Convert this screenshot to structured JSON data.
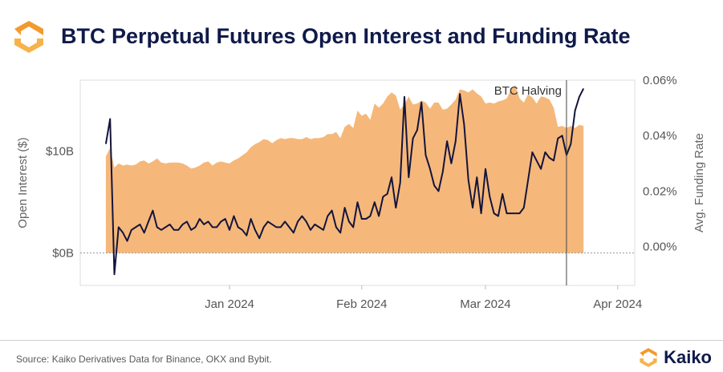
{
  "header": {
    "title": "BTC Perpetual Futures Open Interest and Funding Rate"
  },
  "footer": {
    "source": "Source: Kaiko Derivatives Data for Binance, OKX and Bybit.",
    "brand": "Kaiko"
  },
  "colors": {
    "area": "#f5b87a",
    "line": "#14143c",
    "brand_orange": "#f29a2e",
    "title": "#0f1a4a"
  },
  "chart_data": {
    "type": "area",
    "title": "BTC Perpetual Futures Open Interest and Funding Rate",
    "ylabel_left": "Open Interest ($)",
    "ylabel_right": "Avg. Funding Rate",
    "left_axis": {
      "ylim": [
        -3.2,
        17
      ],
      "ticks": [
        0,
        10
      ],
      "tick_labels": [
        "$0B",
        "$10B"
      ]
    },
    "right_axis": {
      "ylim": [
        -0.014,
        0.06
      ],
      "ticks": [
        0,
        0.02,
        0.04,
        0.06
      ],
      "tick_labels": [
        "0.00%",
        "0.02%",
        "0.04%",
        "0.06%"
      ]
    },
    "x_ticks": [
      {
        "day": 29,
        "label": "Jan 2024"
      },
      {
        "day": 60,
        "label": "Feb 2024"
      },
      {
        "day": 89,
        "label": "Mar 2024"
      },
      {
        "day": 120,
        "label": "Apr 2024"
      }
    ],
    "x_range": [
      -6,
      124
    ],
    "grid": false,
    "annotation": {
      "day": 108,
      "label": "BTC Halving"
    },
    "series": [
      {
        "name": "Open Interest ($)",
        "axis": "left",
        "kind": "area",
        "x": [
          0,
          1,
          2,
          3,
          4,
          5,
          6,
          7,
          8,
          9,
          10,
          11,
          12,
          13,
          14,
          15,
          16,
          17,
          18,
          19,
          20,
          21,
          22,
          23,
          24,
          25,
          26,
          27,
          28,
          29,
          30,
          31,
          32,
          33,
          34,
          35,
          36,
          37,
          38,
          39,
          40,
          41,
          42,
          43,
          44,
          45,
          46,
          47,
          48,
          49,
          50,
          51,
          52,
          53,
          54,
          55,
          56,
          57,
          58,
          59,
          60,
          61,
          62,
          63,
          64,
          65,
          66,
          67,
          68,
          69,
          70,
          71,
          72,
          73,
          74,
          75,
          76,
          77,
          78,
          79,
          80,
          81,
          82,
          83,
          84,
          85,
          86,
          87,
          88,
          89,
          90,
          91,
          92,
          93,
          94,
          95,
          96,
          97,
          98,
          99,
          100,
          101,
          102,
          103,
          104,
          105,
          106,
          107,
          108,
          109,
          110,
          111,
          112
        ],
        "values": [
          9.5,
          10.3,
          8.4,
          8.8,
          8.6,
          8.7,
          8.6,
          8.7,
          9.0,
          9.1,
          8.8,
          9.0,
          9.3,
          8.9,
          8.8,
          8.9,
          8.9,
          8.9,
          8.8,
          8.6,
          8.3,
          8.4,
          8.6,
          8.9,
          9.0,
          8.6,
          8.9,
          9.0,
          8.9,
          8.8,
          9.1,
          9.3,
          9.6,
          9.9,
          10.4,
          10.7,
          10.9,
          11.2,
          11.1,
          10.8,
          11.1,
          11.3,
          11.2,
          11.3,
          11.3,
          11.2,
          11.2,
          11.4,
          11.2,
          11.3,
          11.3,
          11.4,
          11.7,
          11.7,
          11.9,
          11.3,
          12.4,
          12.7,
          12.3,
          14.0,
          13.5,
          13.7,
          13.1,
          14.7,
          14.3,
          14.7,
          15.4,
          15.8,
          15.5,
          14.1,
          14.6,
          15.4,
          14.6,
          14.7,
          15.0,
          14.8,
          14.2,
          14.8,
          14.8,
          14.1,
          14.2,
          14.6,
          15.1,
          16.1,
          16.0,
          15.8,
          16.1,
          15.7,
          15.4,
          14.7,
          14.8,
          14.7,
          14.9,
          15.0,
          15.2,
          16.1,
          16.5,
          15.2,
          14.8,
          15.6,
          15.3,
          14.7,
          15.4,
          15.3,
          15.1,
          14.3,
          12.4,
          12.5,
          12.3,
          12.5,
          12.3,
          12.6,
          12.5
        ]
      },
      {
        "name": "Avg. Funding Rate",
        "axis": "right",
        "kind": "line",
        "x": [
          0,
          1,
          2,
          3,
          4,
          5,
          6,
          7,
          8,
          9,
          10,
          11,
          12,
          13,
          14,
          15,
          16,
          17,
          18,
          19,
          20,
          21,
          22,
          23,
          24,
          25,
          26,
          27,
          28,
          29,
          30,
          31,
          32,
          33,
          34,
          35,
          36,
          37,
          38,
          39,
          40,
          41,
          42,
          43,
          44,
          45,
          46,
          47,
          48,
          49,
          50,
          51,
          52,
          53,
          54,
          55,
          56,
          57,
          58,
          59,
          60,
          61,
          62,
          63,
          64,
          65,
          66,
          67,
          68,
          69,
          70,
          71,
          72,
          73,
          74,
          75,
          76,
          77,
          78,
          79,
          80,
          81,
          82,
          83,
          84,
          85,
          86,
          87,
          88,
          89,
          90,
          91,
          92,
          93,
          94,
          95,
          96,
          97,
          98,
          99,
          100,
          101,
          102,
          103,
          104,
          105,
          106,
          107,
          108,
          109,
          110,
          111,
          112
        ],
        "values": [
          0.037,
          0.046,
          -0.01,
          0.007,
          0.005,
          0.002,
          0.006,
          0.007,
          0.008,
          0.005,
          0.009,
          0.013,
          0.007,
          0.006,
          0.007,
          0.008,
          0.006,
          0.006,
          0.008,
          0.009,
          0.006,
          0.007,
          0.01,
          0.008,
          0.009,
          0.007,
          0.007,
          0.009,
          0.01,
          0.006,
          0.011,
          0.007,
          0.006,
          0.004,
          0.01,
          0.006,
          0.003,
          0.007,
          0.009,
          0.008,
          0.007,
          0.007,
          0.009,
          0.007,
          0.005,
          0.009,
          0.011,
          0.009,
          0.006,
          0.008,
          0.007,
          0.006,
          0.011,
          0.013,
          0.007,
          0.005,
          0.014,
          0.009,
          0.007,
          0.016,
          0.01,
          0.01,
          0.011,
          0.016,
          0.011,
          0.018,
          0.019,
          0.025,
          0.014,
          0.023,
          0.054,
          0.025,
          0.039,
          0.042,
          0.052,
          0.033,
          0.028,
          0.022,
          0.02,
          0.027,
          0.038,
          0.03,
          0.038,
          0.055,
          0.044,
          0.024,
          0.014,
          0.025,
          0.012,
          0.028,
          0.018,
          0.012,
          0.011,
          0.019,
          0.012,
          0.012,
          0.012,
          0.012,
          0.014,
          0.024,
          0.034,
          0.031,
          0.028,
          0.034,
          0.032,
          0.031,
          0.039,
          0.04,
          0.033,
          0.037,
          0.049,
          0.054,
          0.057
        ],
        "note": ""
      }
    ]
  }
}
